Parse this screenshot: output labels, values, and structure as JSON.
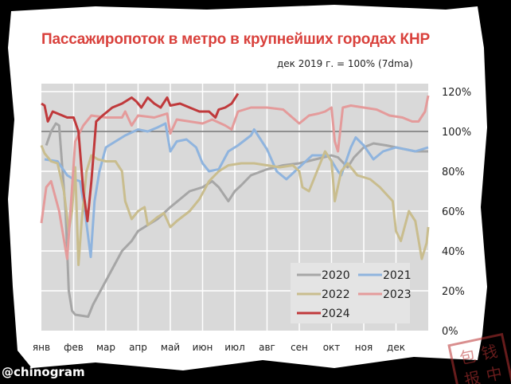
{
  "chart_data": {
    "type": "line",
    "title": "Пассажиропоток в метро в крупнейших городах КНР",
    "subtitle": "дек 2019 г. = 100% (7dma)",
    "xlabel": "",
    "ylabel": "",
    "x_unit": "months since Jan 1",
    "xlim": [
      0,
      12
    ],
    "ylim": [
      0,
      124
    ],
    "reference_line": 100,
    "grid": true,
    "legend_position": "bottom-right",
    "x_tick_labels": [
      "янв",
      "фев",
      "мар",
      "апр",
      "май",
      "июн",
      "июл",
      "авг",
      "сен",
      "окт",
      "ноя",
      "дек"
    ],
    "y_ticks": [
      0,
      20,
      40,
      60,
      80,
      100,
      120
    ],
    "y_tick_labels": [
      "0%",
      "20%",
      "40%",
      "60%",
      "80%",
      "100%",
      "120%"
    ],
    "series": [
      {
        "name": "2020",
        "color": "#a6a6a6",
        "x": [
          0.15,
          0.3,
          0.45,
          0.55,
          0.75,
          0.85,
          0.95,
          1.05,
          1.45,
          1.6,
          2.0,
          2.5,
          2.8,
          3.0,
          3.3,
          3.6,
          3.8,
          4.0,
          4.3,
          4.6,
          5.0,
          5.3,
          5.5,
          5.8,
          6.0,
          6.2,
          6.5,
          7.0,
          7.5,
          8.0,
          8.5,
          9.0,
          9.2,
          9.5,
          9.7,
          10.0,
          10.3,
          10.7,
          11.0,
          11.3,
          11.6,
          12.0
        ],
        "y": [
          93,
          100,
          104,
          103,
          60,
          20,
          10,
          8,
          7,
          13,
          25,
          40,
          45,
          50,
          53,
          56,
          59,
          62,
          66,
          70,
          72,
          75,
          72,
          65,
          70,
          73,
          78,
          81,
          83,
          84,
          86,
          88,
          87,
          82,
          87,
          92,
          94,
          93,
          92,
          91,
          90,
          90
        ]
      },
      {
        "name": "2021",
        "color": "#8fb4de",
        "x": [
          0.1,
          0.5,
          0.8,
          1.0,
          1.2,
          1.35,
          1.53,
          1.65,
          1.8,
          2.0,
          2.3,
          2.6,
          3.0,
          3.3,
          3.6,
          3.85,
          4.0,
          4.2,
          4.5,
          4.8,
          5.0,
          5.2,
          5.5,
          5.8,
          6.1,
          6.5,
          6.6,
          7.0,
          7.3,
          7.6,
          8.0,
          8.4,
          8.7,
          8.9,
          9.2,
          9.3,
          9.6,
          9.75,
          10.0,
          10.3,
          10.6,
          11.0,
          11.3,
          11.6,
          12.0
        ],
        "y": [
          86,
          85,
          78,
          76,
          75,
          60,
          37,
          65,
          80,
          92,
          95,
          98,
          101,
          100,
          102,
          104,
          90,
          95,
          96,
          92,
          84,
          80,
          81,
          90,
          93,
          98,
          101,
          91,
          80,
          76,
          82,
          88,
          88,
          88,
          80,
          78,
          92,
          97,
          93,
          86,
          90,
          92,
          91,
          90,
          92
        ]
      },
      {
        "name": "2022",
        "color": "#c9bd8e",
        "x": [
          0,
          0.1,
          0.3,
          0.5,
          0.7,
          0.85,
          0.95,
          1.05,
          1.15,
          1.25,
          1.4,
          1.55,
          1.75,
          2.0,
          2.3,
          2.5,
          2.6,
          2.8,
          3.0,
          3.2,
          3.3,
          3.6,
          3.8,
          4.0,
          4.2,
          4.6,
          4.9,
          5.2,
          5.5,
          5.8,
          6.2,
          6.6,
          7.0,
          7.4,
          7.8,
          8.0,
          8.1,
          8.3,
          8.6,
          8.8,
          9.0,
          9.1,
          9.3,
          9.5,
          9.8,
          10.2,
          10.5,
          10.9,
          11.0,
          11.15,
          11.4,
          11.6,
          11.8,
          11.95,
          12.0
        ],
        "y": [
          93,
          89,
          85,
          84,
          70,
          50,
          60,
          82,
          33,
          55,
          80,
          88,
          86,
          85,
          85,
          80,
          65,
          56,
          60,
          62,
          53,
          57,
          59,
          52,
          55,
          60,
          66,
          75,
          80,
          83,
          84,
          84,
          83,
          82,
          83,
          80,
          72,
          70,
          82,
          90,
          85,
          65,
          80,
          84,
          78,
          76,
          72,
          65,
          50,
          45,
          60,
          55,
          36,
          44,
          52
        ]
      },
      {
        "name": "2023",
        "color": "#e49b9b",
        "x": [
          0,
          0.15,
          0.3,
          0.55,
          0.8,
          1.05,
          1.3,
          1.55,
          2.0,
          2.5,
          2.6,
          2.8,
          3.0,
          3.5,
          3.9,
          4.0,
          4.2,
          4.6,
          5.0,
          5.3,
          5.7,
          5.9,
          6.1,
          6.5,
          7.0,
          7.5,
          8.0,
          8.3,
          8.6,
          8.8,
          9.0,
          9.1,
          9.2,
          9.35,
          9.6,
          10.0,
          10.4,
          10.8,
          11.2,
          11.5,
          11.7,
          11.9,
          12.0
        ],
        "y": [
          54,
          72,
          75,
          60,
          36,
          95,
          103,
          108,
          107,
          107,
          110,
          103,
          108,
          107,
          109,
          99,
          106,
          105,
          104,
          106,
          103,
          101,
          110,
          112,
          112,
          111,
          104,
          108,
          109,
          110,
          112,
          95,
          90,
          112,
          113,
          112,
          111,
          108,
          107,
          105,
          105,
          110,
          118
        ]
      },
      {
        "name": "2024",
        "color": "#c0393b",
        "x": [
          0,
          0.1,
          0.2,
          0.35,
          0.5,
          0.8,
          1.0,
          1.15,
          1.3,
          1.43,
          1.55,
          1.7,
          1.9,
          2.2,
          2.5,
          2.8,
          2.95,
          3.1,
          3.3,
          3.5,
          3.7,
          3.9,
          4.0,
          4.3,
          4.6,
          4.9,
          5.2,
          5.4,
          5.5,
          5.7,
          5.9,
          6.1
        ],
        "y": [
          114,
          113,
          105,
          110,
          109,
          107,
          107,
          100,
          70,
          55,
          75,
          105,
          108,
          112,
          114,
          117,
          115,
          112,
          117,
          114,
          112,
          117,
          113,
          114,
          112,
          110,
          110,
          107,
          111,
          112,
          114,
          119
        ]
      }
    ]
  },
  "watermark": "@chinogram",
  "stamp_text": "包 钱 报 中"
}
